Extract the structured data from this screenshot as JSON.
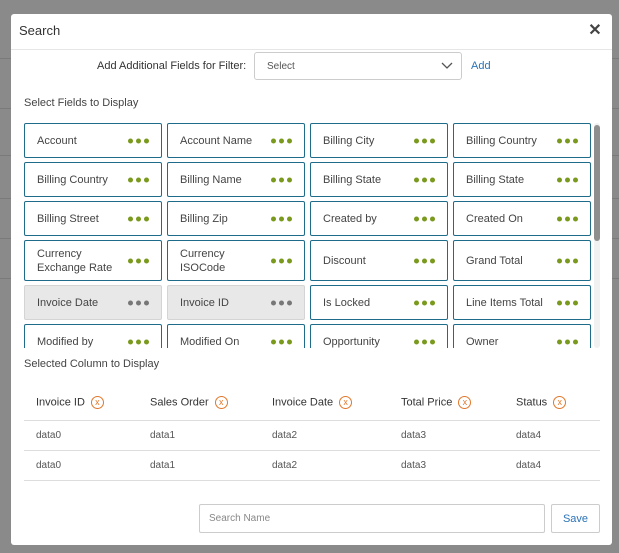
{
  "dialog": {
    "title": "Search",
    "close_label": "✕"
  },
  "filter": {
    "label": "Add Additional Fields for Filter:",
    "select_value": "Select",
    "add_label": "Add"
  },
  "fields_section": {
    "title": "Select Fields to Display",
    "fields": [
      {
        "label": "Account",
        "disabled": false
      },
      {
        "label": "Account Name",
        "disabled": false
      },
      {
        "label": "Billing City",
        "disabled": false
      },
      {
        "label": "Billing Country",
        "disabled": false
      },
      {
        "label": "Billing Country",
        "disabled": false
      },
      {
        "label": "Billing Name",
        "disabled": false
      },
      {
        "label": "Billing State",
        "disabled": false
      },
      {
        "label": "Billing State",
        "disabled": false
      },
      {
        "label": "Billing Street",
        "disabled": false
      },
      {
        "label": "Billing Zip",
        "disabled": false
      },
      {
        "label": "Created by",
        "disabled": false
      },
      {
        "label": "Created On",
        "disabled": false
      },
      {
        "label": "Currency Exchange Rate",
        "disabled": false
      },
      {
        "label": "Currency ISOCode",
        "disabled": false
      },
      {
        "label": "Discount",
        "disabled": false
      },
      {
        "label": "Grand Total",
        "disabled": false
      },
      {
        "label": "Invoice Date",
        "disabled": true
      },
      {
        "label": "Invoice ID",
        "disabled": true
      },
      {
        "label": "Is Locked",
        "disabled": false
      },
      {
        "label": "Line Items Total",
        "disabled": false
      },
      {
        "label": "Modified by",
        "disabled": false
      },
      {
        "label": "Modified On",
        "disabled": false
      },
      {
        "label": "Opportunity",
        "disabled": false
      },
      {
        "label": "Owner",
        "disabled": false
      }
    ]
  },
  "selected_section": {
    "title": "Selected Column to Display",
    "columns": [
      "Invoice ID",
      "Sales Order",
      "Invoice Date",
      "Total Price",
      "Status"
    ],
    "remove_label": "x",
    "rows": [
      [
        "data0",
        "data1",
        "data2",
        "data3",
        "data4"
      ],
      [
        "data0",
        "data1",
        "data2",
        "data3",
        "data4"
      ]
    ]
  },
  "footer": {
    "search_placeholder": "Search Name",
    "save_label": "Save"
  },
  "colors": {
    "field_border": "#1f6c8a",
    "dots_active": "#7a9a1e",
    "dots_disabled": "#777777",
    "remove_badge": "#e0782c",
    "link": "#2a73b8"
  }
}
